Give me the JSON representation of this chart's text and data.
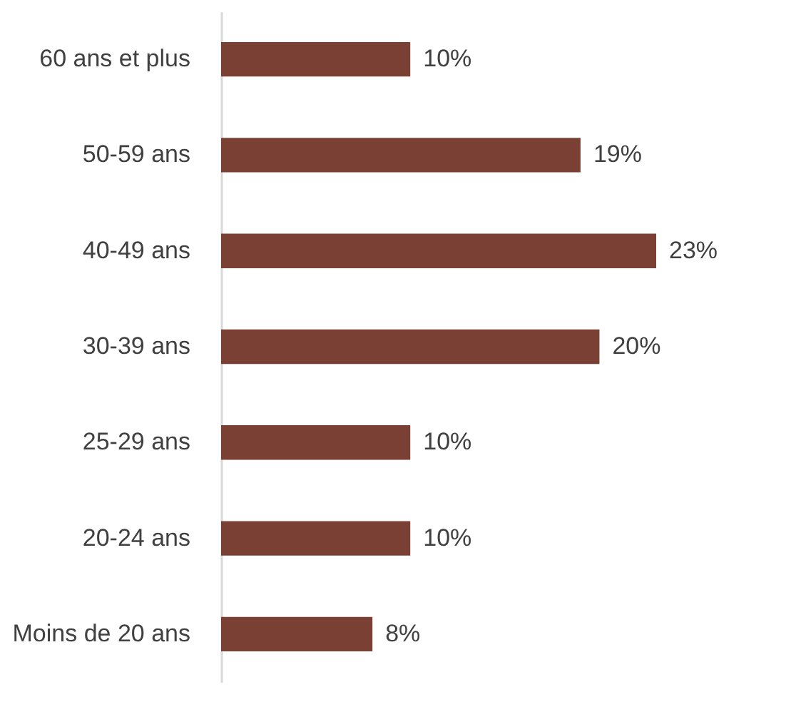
{
  "chart_data": {
    "type": "bar",
    "orientation": "horizontal",
    "categories": [
      "60 ans et plus",
      "50-59 ans",
      "40-49 ans",
      "30-39 ans",
      "25-29 ans",
      "20-24 ans",
      "Moins de 20 ans"
    ],
    "values": [
      10,
      19,
      23,
      20,
      10,
      10,
      8
    ],
    "value_labels": [
      "10%",
      "19%",
      "23%",
      "20%",
      "10%",
      "10%",
      "8%"
    ],
    "color": "#7a4033"
  }
}
